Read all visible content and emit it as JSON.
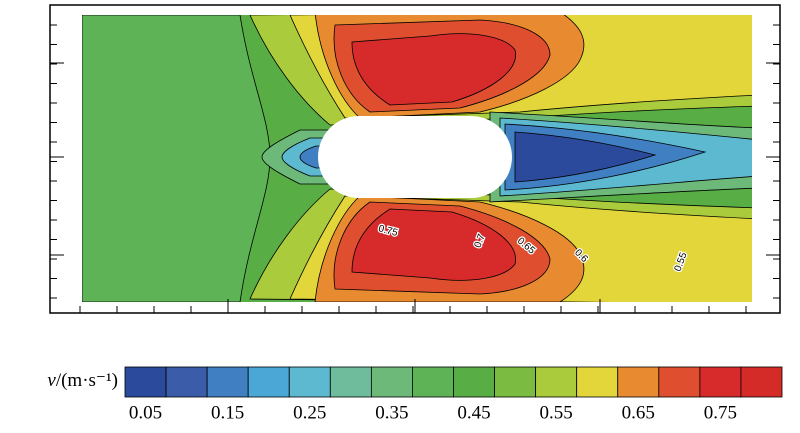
{
  "colorbar": {
    "label_var": "v",
    "label_unit": "/(m·s⁻¹)",
    "levels": [
      0.05,
      0.1,
      0.15,
      0.2,
      0.25,
      0.3,
      0.35,
      0.4,
      0.45,
      0.5,
      0.55,
      0.6,
      0.65,
      0.7,
      0.75,
      0.8
    ],
    "colors": [
      "#2c4a9c",
      "#3a5ca9",
      "#3f7fc2",
      "#4ba7d6",
      "#5cb9cf",
      "#6ebc9c",
      "#6cb97a",
      "#5db356",
      "#58ad45",
      "#7cbb42",
      "#a9cb3c",
      "#e2d63a",
      "#e88b30",
      "#df4e2e",
      "#d72b2b",
      "#d42a28"
    ],
    "ticks": [
      0.05,
      0.15,
      0.25,
      0.35,
      0.45,
      0.55,
      0.65,
      0.75
    ]
  },
  "contour_labels": [
    0.75,
    0.7,
    0.65,
    0.6,
    0.55
  ]
}
